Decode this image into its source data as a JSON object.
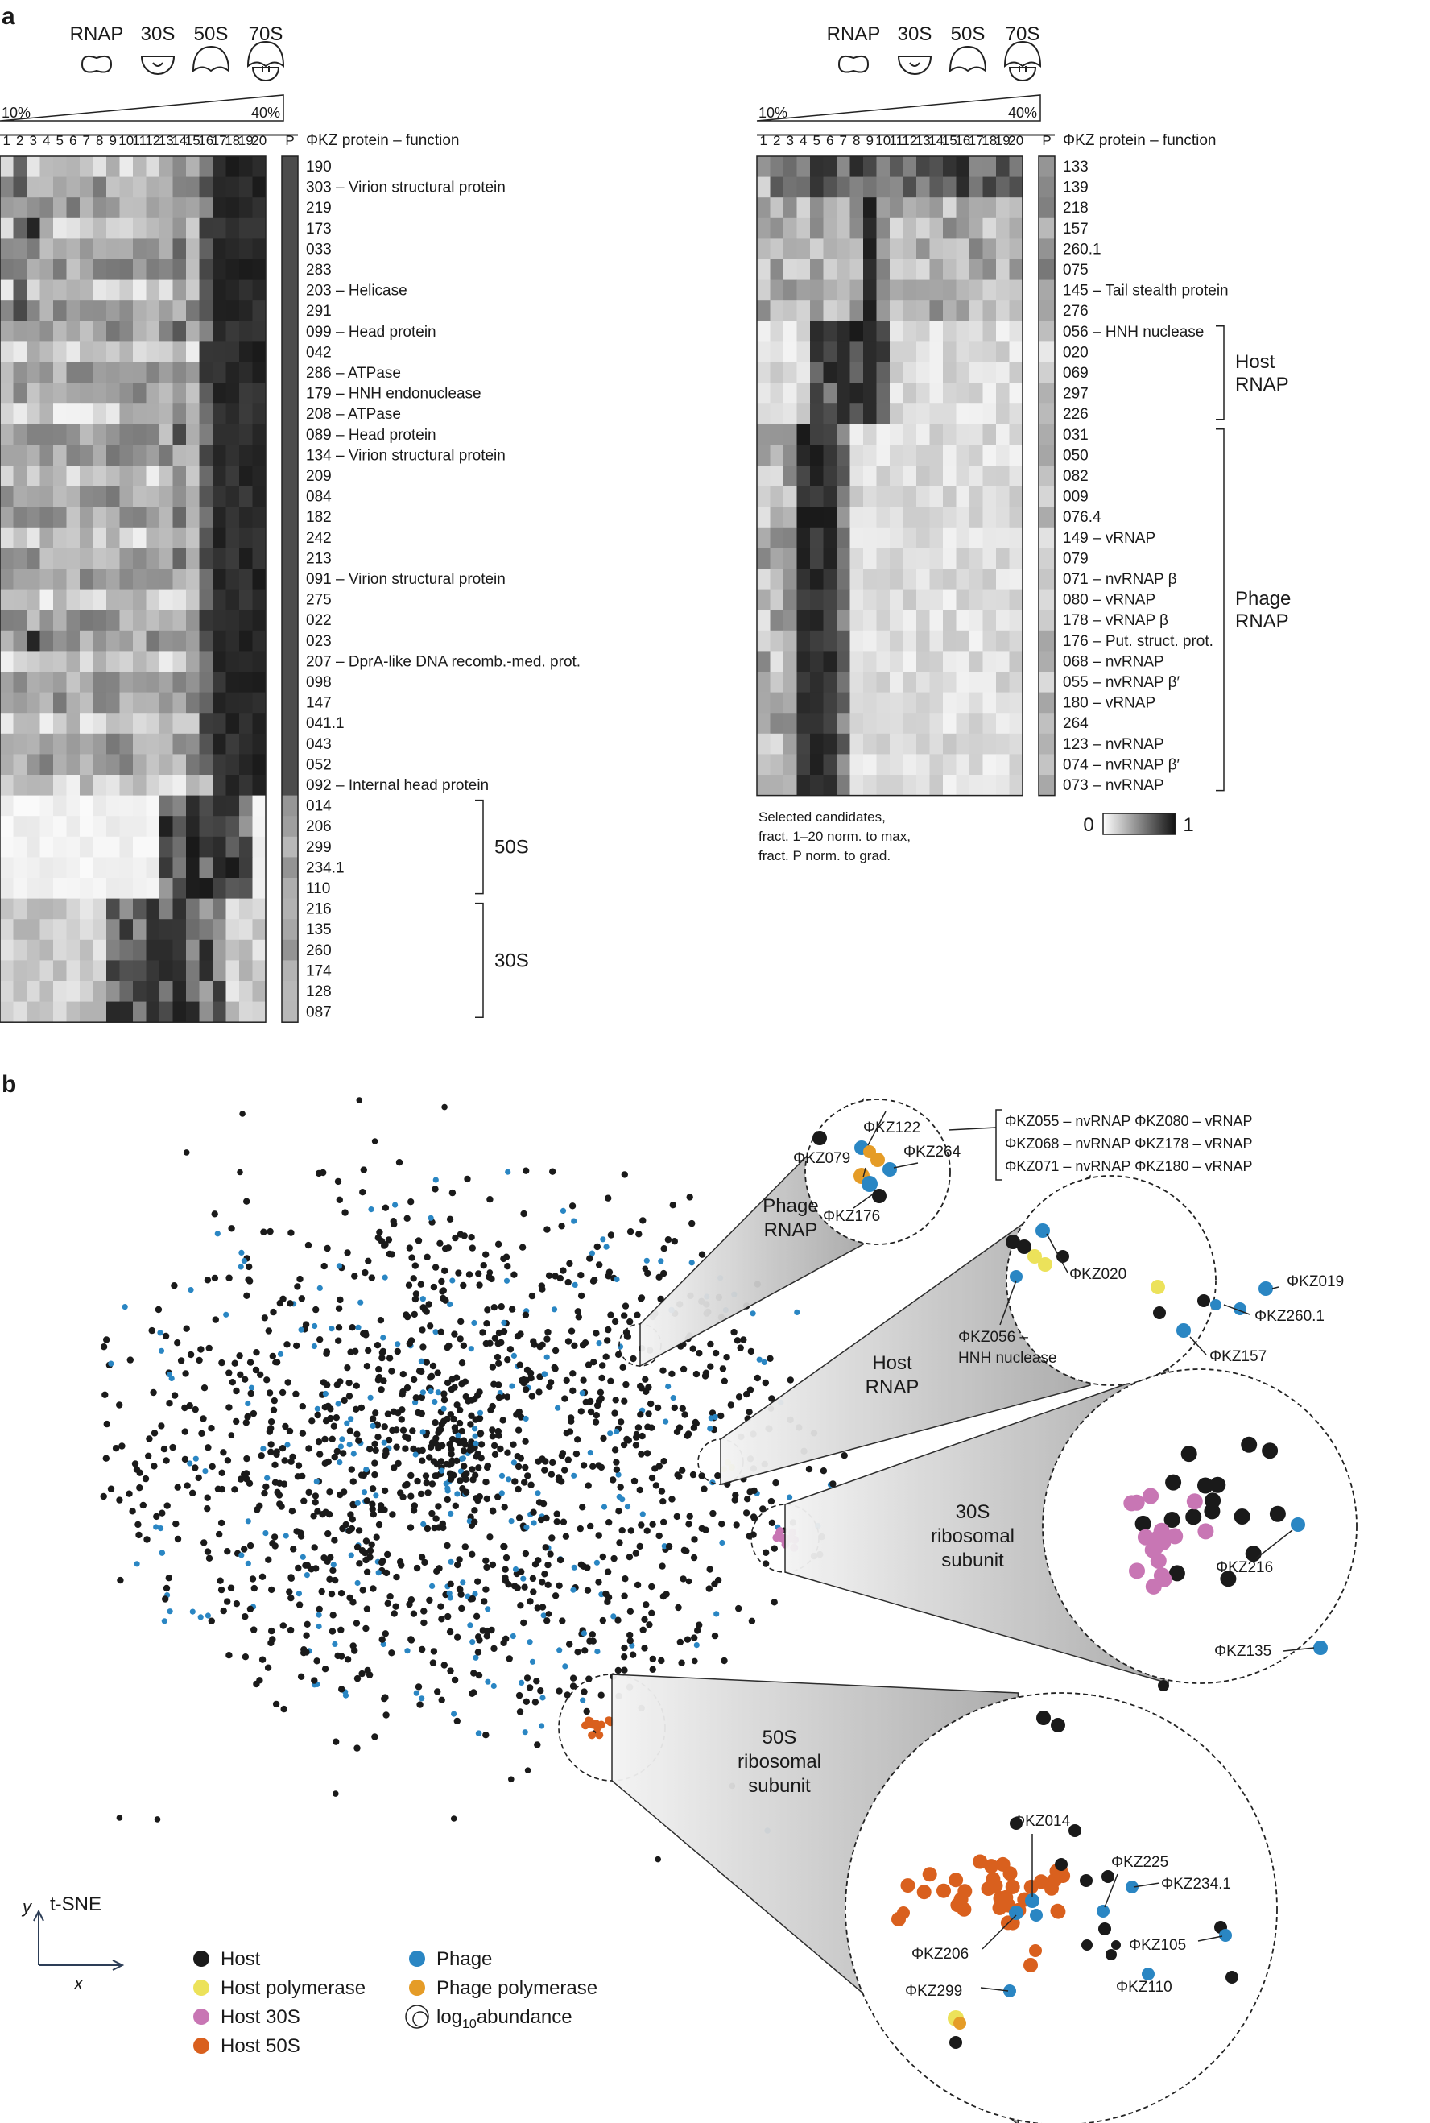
{
  "panel_a": {
    "label": "a",
    "left": {
      "stages": [
        "RNAP",
        "30S",
        "50S",
        "70S"
      ],
      "gradient_low": "10%",
      "gradient_high": "40%",
      "fractions": [
        "1",
        "2",
        "3",
        "4",
        "5",
        "6",
        "7",
        "8",
        "9",
        "10",
        "11",
        "12",
        "13",
        "14",
        "15",
        "16",
        "17",
        "18",
        "19",
        "20"
      ],
      "p_label": "P",
      "header": "ΦKZ protein – function",
      "rows": [
        "190",
        "303 – Virion structural protein",
        "219",
        "173",
        "033",
        "283",
        "203 – Helicase",
        "291",
        "099 – Head protein",
        "042",
        "286 – ATPase",
        "179 – HNH endonuclease",
        "208 – ATPase",
        "089 – Head protein",
        "134 – Virion structural protein",
        "209",
        "084",
        "182",
        "242",
        "213",
        "091 – Virion structural protein",
        "275",
        "022",
        "023",
        "207 – DprA-like DNA recomb.-med. prot.",
        "098",
        "147",
        "041.1",
        "043",
        "052",
        "092 – Internal head protein",
        "014",
        "206",
        "299",
        "234.1",
        "110",
        "216",
        "135",
        "260",
        "174",
        "128",
        "087"
      ],
      "groups": [
        {
          "label": "50S",
          "from": 31,
          "to": 36
        },
        {
          "label": "30S",
          "from": 36,
          "to": 42
        }
      ]
    },
    "right": {
      "stages": [
        "RNAP",
        "30S",
        "50S",
        "70S"
      ],
      "gradient_low": "10%",
      "gradient_high": "40%",
      "fractions": [
        "1",
        "2",
        "3",
        "4",
        "5",
        "6",
        "7",
        "8",
        "9",
        "10",
        "11",
        "12",
        "13",
        "14",
        "15",
        "16",
        "17",
        "18",
        "19",
        "20"
      ],
      "p_label": "P",
      "header": "ΦKZ protein – function",
      "rows": [
        "133",
        "139",
        "218",
        "157",
        "260.1",
        "075",
        "145 – Tail stealth protein",
        "276",
        "056 – HNH nuclease",
        "020",
        "069",
        "297",
        "226",
        "031",
        "050",
        "082",
        "009",
        "076.4",
        "149 – vRNAP",
        "079",
        "071 – nvRNAP β",
        "080 – vRNAP",
        "178 – vRNAP β",
        "176 – Put. struct. prot.",
        "068 – nvRNAP",
        "055 – nvRNAP β′",
        "180 – vRNAP",
        "264",
        "123 – nvRNAP",
        "074 – nvRNAP β′",
        "073 – nvRNAP"
      ],
      "groups": [
        {
          "label": [
            "Host",
            "RNAP"
          ],
          "from": 8,
          "to": 13
        },
        {
          "label": [
            "Phage",
            "RNAP"
          ],
          "from": 13,
          "to": 31
        }
      ],
      "note": [
        "Selected candidates,",
        "fract. 1–20 norm. to max,",
        "fract. P norm. to grad."
      ],
      "colorbar_min": "0",
      "colorbar_max": "1"
    }
  },
  "panel_b": {
    "label": "b",
    "axis_y": "y",
    "axis_x": "x",
    "axis_title": "t-SNE",
    "clusters": {
      "phage_rnap": "Phage RNAP",
      "host_rnap": "Host RNAP",
      "ribo30": "30S ribosomal subunit",
      "ribo50": "50S ribosomal subunit"
    },
    "callouts": {
      "phage_rnap": [
        "ΦKZ122",
        "ΦKZ079",
        "ΦKZ264",
        "ΦKZ176"
      ],
      "host_rnap": [
        "ΦKZ020",
        "ΦKZ019",
        "ΦKZ260.1",
        "ΦKZ056 –",
        "HNH nuclease",
        "ΦKZ157"
      ],
      "ribo30": [
        "ΦKZ216",
        "ΦKZ135"
      ],
      "ribo50": [
        "ΦKZ014",
        "ΦKZ225",
        "ΦKZ234.1",
        "ΦKZ206",
        "ΦKZ105",
        "ΦKZ299",
        "ΦKZ110"
      ]
    },
    "bracket_lines": [
      "ΦKZ055 – nvRNAP ΦKZ080 – vRNAP",
      "ΦKZ068 – nvRNAP ΦKZ178 – vRNAP",
      "ΦKZ071 – nvRNAP ΦKZ180 – vRNAP"
    ],
    "legend": [
      {
        "label": "Host",
        "color": "#1a1a1a"
      },
      {
        "label": "Host polymerase",
        "color": "#ece25a"
      },
      {
        "label": "Host 30S",
        "color": "#c876b4"
      },
      {
        "label": "Host 50S",
        "color": "#d9601e"
      },
      {
        "label": "Phage",
        "color": "#2a86c3"
      },
      {
        "label": "Phage polymerase",
        "color": "#e59c27"
      },
      {
        "label": "log",
        "sub": "10",
        "tail": "abundance",
        "color": "#ffffff"
      }
    ]
  }
}
